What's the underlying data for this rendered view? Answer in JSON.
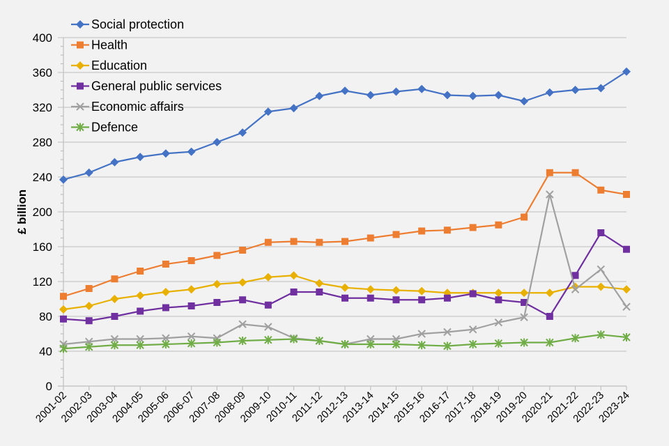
{
  "chart_data": {
    "type": "line",
    "title": "",
    "xlabel": "",
    "ylabel": "£ billion",
    "ylim": [
      0,
      400
    ],
    "yticks": [
      0,
      40,
      80,
      120,
      160,
      200,
      240,
      280,
      320,
      360,
      400
    ],
    "grid": true,
    "legend_position": "top-left",
    "categories": [
      "2001-02",
      "2002-03",
      "2003-04",
      "2004-05",
      "2005-06",
      "2006-07",
      "2007-08",
      "2008-09",
      "2009-10",
      "2010-11",
      "2011-12",
      "2012-13",
      "2013-14",
      "2014-15",
      "2015-16",
      "2016-17",
      "2017-18",
      "2018-19",
      "2019-20",
      "2020-21",
      "2021-22",
      "2022-23",
      "2023-24"
    ],
    "series": [
      {
        "name": "Social protection",
        "color": "#4472C4",
        "marker": "diamond",
        "values": [
          237,
          245,
          257,
          263,
          267,
          269,
          280,
          291,
          315,
          319,
          333,
          339,
          334,
          338,
          341,
          334,
          333,
          334,
          327,
          337,
          340,
          342,
          361
        ]
      },
      {
        "name": "Health",
        "color": "#ED7D31",
        "marker": "square",
        "values": [
          103,
          112,
          123,
          132,
          140,
          144,
          150,
          156,
          165,
          166,
          165,
          166,
          170,
          174,
          178,
          179,
          182,
          185,
          194,
          245,
          245,
          225,
          220
        ]
      },
      {
        "name": "Education",
        "color": "#E8B000",
        "marker": "diamond",
        "values": [
          88,
          92,
          100,
          104,
          108,
          111,
          117,
          119,
          125,
          127,
          118,
          113,
          111,
          110,
          109,
          107,
          107,
          107,
          107,
          107,
          114,
          114,
          111
        ]
      },
      {
        "name": "General public services",
        "color": "#7030A0",
        "marker": "square",
        "values": [
          77,
          75,
          80,
          86,
          90,
          92,
          96,
          99,
          93,
          108,
          108,
          101,
          101,
          99,
          99,
          101,
          106,
          99,
          96,
          80,
          127,
          176,
          157
        ]
      },
      {
        "name": "Economic affairs",
        "color": "#A0A0A0",
        "marker": "x",
        "values": [
          48,
          51,
          54,
          54,
          55,
          57,
          55,
          71,
          68,
          55,
          52,
          48,
          54,
          54,
          60,
          62,
          65,
          73,
          79,
          220,
          111,
          134,
          91
        ]
      },
      {
        "name": "Defence",
        "color": "#70AD47",
        "marker": "star",
        "values": [
          43,
          45,
          47,
          47,
          48,
          49,
          50,
          52,
          53,
          54,
          52,
          48,
          48,
          48,
          47,
          46,
          48,
          49,
          50,
          50,
          55,
          59,
          56
        ]
      }
    ]
  }
}
